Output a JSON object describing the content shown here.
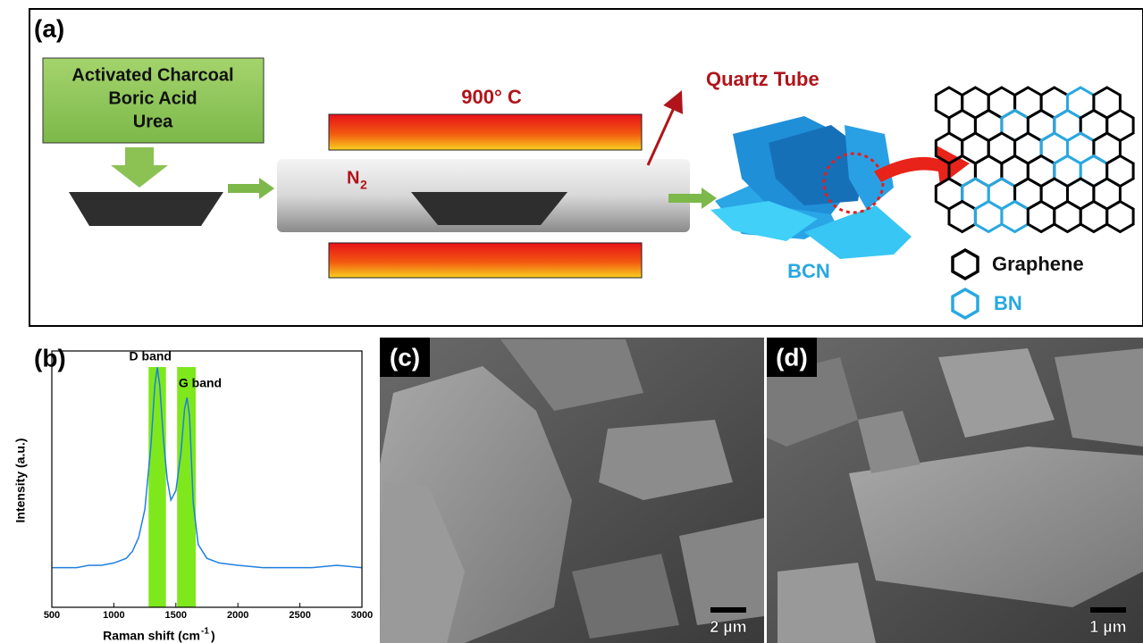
{
  "panel_a": {
    "label": "(a)",
    "precursors": [
      "Activated Charcoal",
      "Boric Acid",
      "Urea"
    ],
    "temperature": "900° C",
    "tube": "Quartz Tube",
    "gas": {
      "symbol": "N",
      "subscript": "2"
    },
    "product": "BCN",
    "legend": [
      "Graphene",
      "BN"
    ]
  },
  "panel_b": {
    "label": "(b)",
    "y_axis_title": "Intensity (a.u.)",
    "x_axis_title": {
      "text": "Raman shift (cm",
      "superscript": "-1",
      "close": ")"
    },
    "xlim": [
      500,
      3000
    ],
    "xticks": [
      500,
      1000,
      1500,
      2000,
      2500,
      3000
    ],
    "ylim": [
      0,
      1.1
    ],
    "color": "#1e7fe0",
    "bands": [
      {
        "label": "D band",
        "range": [
          1280,
          1420
        ],
        "color": "#7ee81c"
      },
      {
        "label": "G band",
        "range": [
          1510,
          1660
        ],
        "color": "#7ee81c"
      }
    ],
    "spectrum": {
      "x": [
        500,
        600,
        700,
        800,
        900,
        1000,
        1100,
        1150,
        1200,
        1250,
        1300,
        1330,
        1350,
        1370,
        1400,
        1430,
        1460,
        1500,
        1540,
        1570,
        1590,
        1610,
        1640,
        1680,
        1750,
        1850,
        2000,
        2200,
        2400,
        2600,
        2800,
        3000
      ],
      "y": [
        0.17,
        0.17,
        0.17,
        0.18,
        0.18,
        0.19,
        0.21,
        0.24,
        0.3,
        0.42,
        0.7,
        0.95,
        1.03,
        0.95,
        0.72,
        0.55,
        0.46,
        0.5,
        0.66,
        0.85,
        0.9,
        0.82,
        0.45,
        0.27,
        0.21,
        0.19,
        0.18,
        0.17,
        0.17,
        0.17,
        0.18,
        0.17
      ]
    }
  },
  "panel_c": {
    "label": "(c)",
    "scale_bar": "2 µm"
  },
  "panel_d": {
    "label": "(d)",
    "scale_bar": "1 µm"
  }
}
